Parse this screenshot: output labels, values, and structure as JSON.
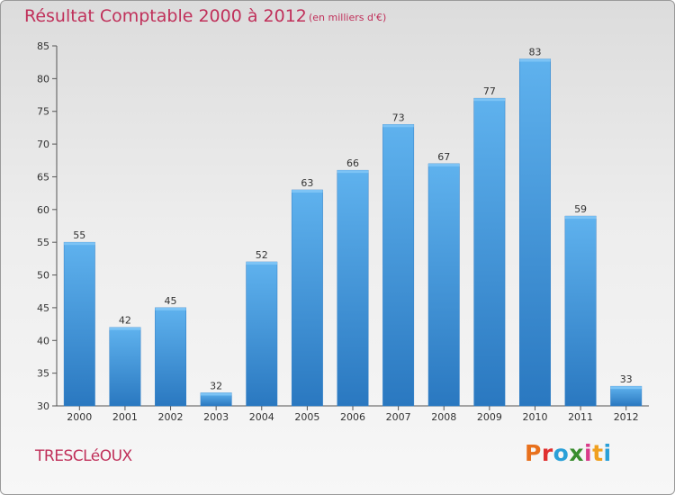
{
  "chart_data": {
    "type": "bar",
    "title": "Résultat Comptable 2000 à 2012",
    "subtitle": "(en milliers d'€)",
    "categories": [
      "2000",
      "2001",
      "2002",
      "2003",
      "2004",
      "2005",
      "2006",
      "2007",
      "2008",
      "2009",
      "2010",
      "2011",
      "2012"
    ],
    "values": [
      55,
      42,
      45,
      32,
      52,
      63,
      66,
      73,
      67,
      77,
      83,
      59,
      33
    ],
    "xlabel": "",
    "ylabel": "",
    "ylim": [
      30,
      85
    ],
    "yticks": [
      30,
      35,
      40,
      45,
      50,
      55,
      60,
      65,
      70,
      75,
      80,
      85
    ],
    "grid": false,
    "bar_color": "#4a9fe0"
  },
  "footer": {
    "commune": "TRESCLéOUX",
    "logo_text": "Proxiti",
    "logo_colors": [
      "#e8701c",
      "#e03030",
      "#2aa0d8",
      "#3a8d2f",
      "#d93b8a",
      "#f0a020",
      "#2aa0d8"
    ]
  }
}
